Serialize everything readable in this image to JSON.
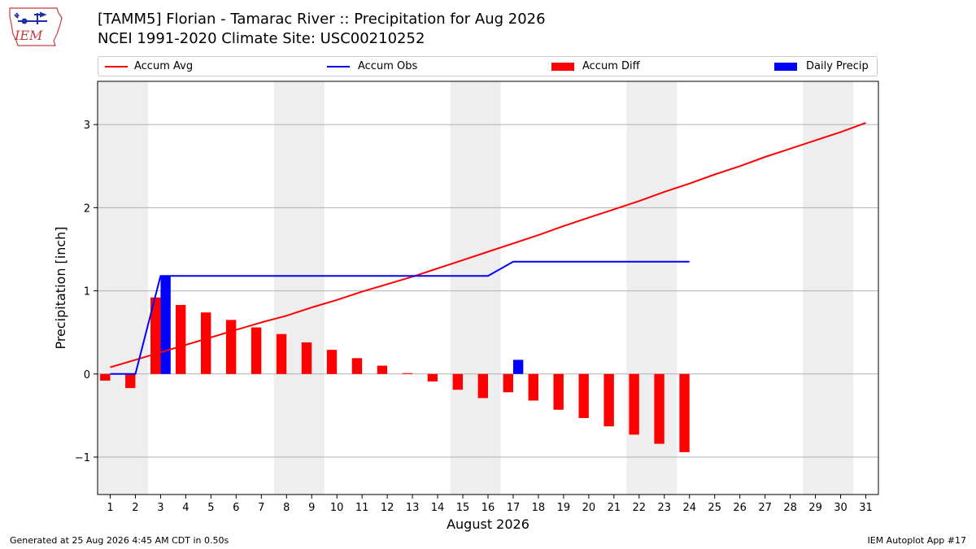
{
  "header": {
    "title_line1": "[TAMM5] Florian - Tamarac River :: Precipitation for Aug 2026",
    "title_line2": "NCEI 1991-2020 Climate Site: USC00210252",
    "logo_text": "IEM"
  },
  "footer": {
    "left": "Generated at 25 Aug 2026 4:45 AM CDT in 0.50s",
    "right": "IEM Autoplot App #17"
  },
  "colors": {
    "accum_avg": "#ff0000",
    "accum_obs": "#0000ff",
    "accum_diff": "#ff0000",
    "daily_precip": "#0000ff",
    "weekend_band": "#eeeeee",
    "grid": "#b0b0b0"
  },
  "chart_data": {
    "type": "bar",
    "title": "[TAMM5] Florian - Tamarac River :: Precipitation for Aug 2026",
    "subtitle": "NCEI 1991-2020 Climate Site: USC00210252",
    "xlabel": "August 2026",
    "ylabel": "Precipitation [inch]",
    "xlim": [
      0.5,
      31.5
    ],
    "ylim": [
      -1.45,
      3.52
    ],
    "y_ticks": [
      -1,
      0,
      1,
      2,
      3
    ],
    "y_tick_labels": [
      "−1",
      "0",
      "1",
      "2",
      "3"
    ],
    "x": [
      1,
      2,
      3,
      4,
      5,
      6,
      7,
      8,
      9,
      10,
      11,
      12,
      13,
      14,
      15,
      16,
      17,
      18,
      19,
      20,
      21,
      22,
      23,
      24,
      25,
      26,
      27,
      28,
      29,
      30,
      31
    ],
    "x_tick_labels": [
      "1",
      "2",
      "3",
      "4",
      "5",
      "6",
      "7",
      "8",
      "9",
      "10",
      "11",
      "12",
      "13",
      "14",
      "15",
      "16",
      "17",
      "18",
      "19",
      "20",
      "21",
      "22",
      "23",
      "24",
      "25",
      "26",
      "27",
      "28",
      "29",
      "30",
      "31"
    ],
    "grid": "horizontal",
    "legend_position": "top",
    "weekend_days": [
      1,
      2,
      8,
      9,
      15,
      16,
      22,
      23,
      29,
      30
    ],
    "series": [
      {
        "name": "Accum Avg",
        "kind": "line",
        "x": [
          1,
          2,
          3,
          4,
          5,
          6,
          7,
          8,
          9,
          10,
          11,
          12,
          13,
          14,
          15,
          16,
          17,
          18,
          19,
          20,
          21,
          22,
          23,
          24,
          25,
          26,
          27,
          28,
          29,
          30,
          31
        ],
        "values": [
          0.08,
          0.17,
          0.26,
          0.35,
          0.44,
          0.53,
          0.62,
          0.7,
          0.8,
          0.89,
          0.99,
          1.08,
          1.17,
          1.27,
          1.37,
          1.47,
          1.57,
          1.67,
          1.78,
          1.88,
          1.98,
          2.08,
          2.19,
          2.29,
          2.4,
          2.5,
          2.61,
          2.71,
          2.81,
          2.91,
          3.02
        ]
      },
      {
        "name": "Accum Obs",
        "kind": "line",
        "x": [
          1,
          2,
          3,
          4,
          5,
          6,
          7,
          8,
          9,
          10,
          11,
          12,
          13,
          14,
          15,
          16,
          17,
          18,
          19,
          20,
          21,
          22,
          23,
          24
        ],
        "values": [
          0,
          0,
          1.18,
          1.18,
          1.18,
          1.18,
          1.18,
          1.18,
          1.18,
          1.18,
          1.18,
          1.18,
          1.18,
          1.18,
          1.18,
          1.18,
          1.35,
          1.35,
          1.35,
          1.35,
          1.35,
          1.35,
          1.35,
          1.35
        ]
      },
      {
        "name": "Accum Diff",
        "kind": "bar",
        "x": [
          1,
          2,
          3,
          4,
          5,
          6,
          7,
          8,
          9,
          10,
          11,
          12,
          13,
          14,
          15,
          16,
          17,
          18,
          19,
          20,
          21,
          22,
          23,
          24
        ],
        "values": [
          -0.08,
          -0.17,
          0.92,
          0.83,
          0.74,
          0.65,
          0.56,
          0.48,
          0.38,
          0.29,
          0.19,
          0.1,
          0.01,
          -0.09,
          -0.19,
          -0.29,
          -0.22,
          -0.32,
          -0.43,
          -0.53,
          -0.63,
          -0.73,
          -0.84,
          -0.94
        ]
      },
      {
        "name": "Daily Precip",
        "kind": "bar",
        "x": [
          3,
          17
        ],
        "values": [
          1.18,
          0.17
        ]
      }
    ]
  }
}
